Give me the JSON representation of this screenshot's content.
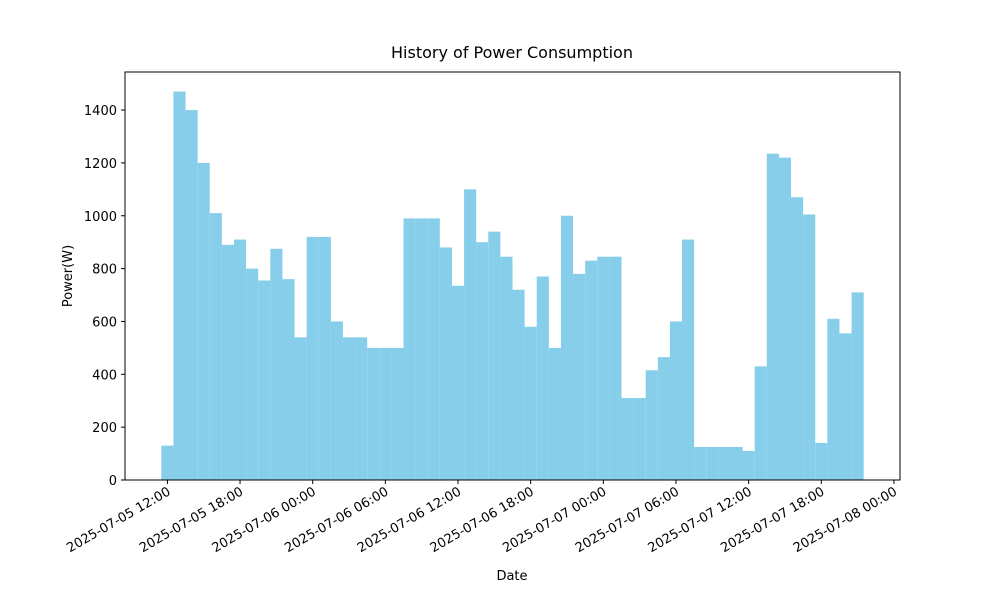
{
  "chart_data": {
    "type": "bar",
    "title": "History of Power Consumption",
    "x_label": "Date",
    "y_label": "Power(W)",
    "color": "#87ceeb",
    "x": [
      "2025-07-05 12:00",
      "2025-07-05 13:00",
      "2025-07-05 14:00",
      "2025-07-05 15:00",
      "2025-07-05 16:00",
      "2025-07-05 17:00",
      "2025-07-05 18:00",
      "2025-07-05 19:00",
      "2025-07-05 20:00",
      "2025-07-05 21:00",
      "2025-07-05 22:00",
      "2025-07-05 23:00",
      "2025-07-06 00:00",
      "2025-07-06 01:00",
      "2025-07-06 02:00",
      "2025-07-06 03:00",
      "2025-07-06 04:00",
      "2025-07-06 05:00",
      "2025-07-06 06:00",
      "2025-07-06 07:00",
      "2025-07-06 08:00",
      "2025-07-06 09:00",
      "2025-07-06 10:00",
      "2025-07-06 11:00",
      "2025-07-06 12:00",
      "2025-07-06 13:00",
      "2025-07-06 14:00",
      "2025-07-06 15:00",
      "2025-07-06 16:00",
      "2025-07-06 17:00",
      "2025-07-06 18:00",
      "2025-07-06 19:00",
      "2025-07-06 20:00",
      "2025-07-06 21:00",
      "2025-07-06 22:00",
      "2025-07-06 23:00",
      "2025-07-07 00:00",
      "2025-07-07 01:00",
      "2025-07-07 02:00",
      "2025-07-07 03:00",
      "2025-07-07 04:00",
      "2025-07-07 05:00",
      "2025-07-07 06:00",
      "2025-07-07 07:00",
      "2025-07-07 08:00",
      "2025-07-07 09:00",
      "2025-07-07 10:00",
      "2025-07-07 11:00",
      "2025-07-07 12:00",
      "2025-07-07 13:00",
      "2025-07-07 14:00",
      "2025-07-07 15:00",
      "2025-07-07 16:00",
      "2025-07-07 17:00",
      "2025-07-07 18:00",
      "2025-07-07 19:00",
      "2025-07-07 20:00",
      "2025-07-07 21:00"
    ],
    "values": [
      130,
      1470,
      1400,
      1200,
      1010,
      890,
      910,
      800,
      755,
      875,
      760,
      540,
      920,
      920,
      600,
      540,
      540,
      500,
      500,
      500,
      990,
      990,
      990,
      880,
      735,
      1100,
      900,
      940,
      845,
      720,
      580,
      770,
      500,
      1000,
      780,
      830,
      845,
      845,
      310,
      310,
      415,
      465,
      600,
      910,
      125,
      125,
      125,
      125,
      110,
      430,
      1235,
      1220,
      1070,
      1005,
      140,
      610,
      555,
      710
    ],
    "xlim": [
      "2025-07-05 08:30",
      "2025-07-08 00:30"
    ],
    "xticks": [
      "2025-07-05 12:00",
      "2025-07-05 18:00",
      "2025-07-06 00:00",
      "2025-07-06 06:00",
      "2025-07-06 12:00",
      "2025-07-06 18:00",
      "2025-07-07 00:00",
      "2025-07-07 06:00",
      "2025-07-07 12:00",
      "2025-07-07 18:00",
      "2025-07-08 00:00"
    ],
    "ylim": [
      0,
      1544
    ],
    "yticks": [
      0,
      200,
      400,
      600,
      800,
      1000,
      1200,
      1400
    ]
  }
}
